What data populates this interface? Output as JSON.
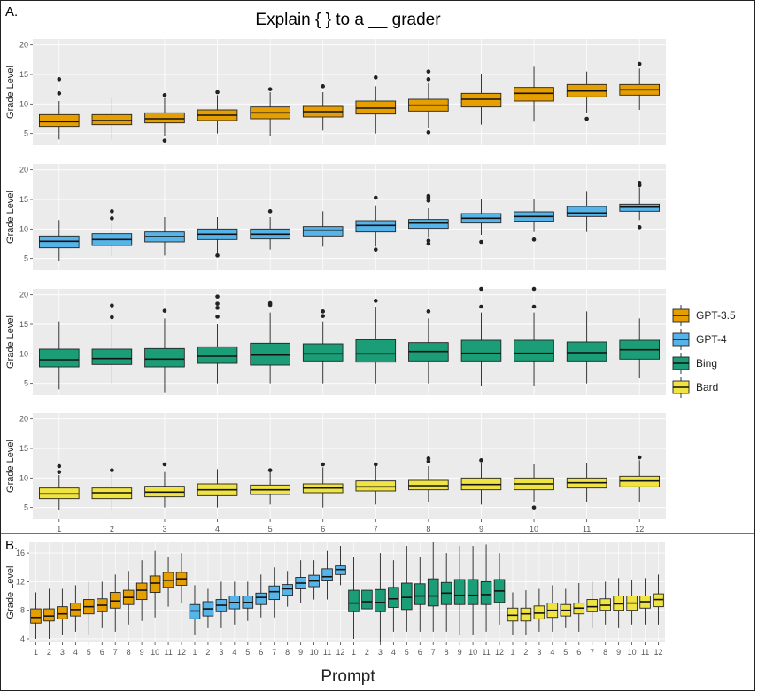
{
  "figure": {
    "panel_a_label": "A.",
    "panel_b_label": "B.",
    "title": "Explain { } to a __ grader",
    "x_title": "Prompt",
    "y_title": "Grade Level"
  },
  "legend": {
    "items": [
      {
        "name": "GPT-3.5",
        "color": "#E69F00"
      },
      {
        "name": "GPT-4",
        "color": "#56B4E9"
      },
      {
        "name": "Bing",
        "color": "#1B9E77"
      },
      {
        "name": "Bard",
        "color": "#F0E442"
      }
    ]
  },
  "chart_data": [
    {
      "type": "boxplot",
      "panel": "A",
      "model": "GPT-3.5",
      "color": "#E69F00",
      "categories": [
        "1",
        "2",
        "3",
        "4",
        "5",
        "6",
        "7",
        "8",
        "9",
        "10",
        "11",
        "12"
      ],
      "ylabel": "Grade Level",
      "ylim": [
        3,
        21
      ],
      "yticks": [
        5,
        10,
        15,
        20
      ],
      "boxes": [
        {
          "lo": 4,
          "q1": 6.2,
          "med": 7,
          "q3": 8.2,
          "hi": 10.5,
          "out": [
            11.8,
            14.2
          ]
        },
        {
          "lo": 4,
          "q1": 6.5,
          "med": 7.2,
          "q3": 8.2,
          "hi": 11
        },
        {
          "lo": 4.5,
          "q1": 6.8,
          "med": 7.5,
          "q3": 8.5,
          "hi": 11,
          "out": [
            3.8,
            11.5
          ]
        },
        {
          "lo": 5,
          "q1": 7.2,
          "med": 8.1,
          "q3": 9,
          "hi": 11.5,
          "out": [
            12
          ]
        },
        {
          "lo": 4.5,
          "q1": 7.5,
          "med": 8.5,
          "q3": 9.5,
          "hi": 12,
          "out": [
            12.5
          ]
        },
        {
          "lo": 5.5,
          "q1": 7.8,
          "med": 8.7,
          "q3": 9.6,
          "hi": 12,
          "out": [
            13
          ]
        },
        {
          "lo": 5,
          "q1": 8.3,
          "med": 9.3,
          "q3": 10.5,
          "hi": 13,
          "out": [
            14.5
          ]
        },
        {
          "lo": 6,
          "q1": 8.8,
          "med": 9.8,
          "q3": 10.8,
          "hi": 13.5,
          "out": [
            5.2,
            14.2,
            15.5
          ]
        },
        {
          "lo": 6.5,
          "q1": 9.5,
          "med": 10.8,
          "q3": 11.8,
          "hi": 15
        },
        {
          "lo": 7,
          "q1": 10.5,
          "med": 11.8,
          "q3": 12.8,
          "hi": 16.3
        },
        {
          "lo": 8.5,
          "q1": 11.2,
          "med": 12.2,
          "q3": 13.3,
          "hi": 15.5,
          "out": [
            7.5
          ]
        },
        {
          "lo": 9,
          "q1": 11.5,
          "med": 12.4,
          "q3": 13.3,
          "hi": 16,
          "out": [
            16.8
          ]
        }
      ]
    },
    {
      "type": "boxplot",
      "panel": "A",
      "model": "GPT-4",
      "color": "#56B4E9",
      "categories": [
        "1",
        "2",
        "3",
        "4",
        "5",
        "6",
        "7",
        "8",
        "9",
        "10",
        "11",
        "12"
      ],
      "ylabel": "Grade Level",
      "ylim": [
        3,
        21
      ],
      "yticks": [
        5,
        10,
        15,
        20
      ],
      "boxes": [
        {
          "lo": 4.5,
          "q1": 6.8,
          "med": 7.9,
          "q3": 8.8,
          "hi": 11.5
        },
        {
          "lo": 5.5,
          "q1": 7.2,
          "med": 8.2,
          "q3": 9.2,
          "hi": 11,
          "out": [
            11.8,
            13
          ]
        },
        {
          "lo": 5.5,
          "q1": 7.8,
          "med": 8.7,
          "q3": 9.5,
          "hi": 12
        },
        {
          "lo": 6,
          "q1": 8.2,
          "med": 9.1,
          "q3": 10,
          "hi": 12,
          "out": [
            5.5
          ]
        },
        {
          "lo": 6.5,
          "q1": 8.3,
          "med": 9.1,
          "q3": 10,
          "hi": 12,
          "out": [
            13
          ]
        },
        {
          "lo": 7,
          "q1": 8.8,
          "med": 9.8,
          "q3": 10.4,
          "hi": 13
        },
        {
          "lo": 7,
          "q1": 9.5,
          "med": 10.6,
          "q3": 11.4,
          "hi": 14,
          "out": [
            6.5,
            15.3
          ]
        },
        {
          "lo": 8.5,
          "q1": 10.1,
          "med": 11,
          "q3": 11.6,
          "hi": 13.5,
          "out": [
            7.5,
            8,
            14.8,
            15.3,
            15.6
          ]
        },
        {
          "lo": 9,
          "q1": 11,
          "med": 11.8,
          "q3": 12.6,
          "hi": 15,
          "out": [
            7.8
          ]
        },
        {
          "lo": 9.5,
          "q1": 11.3,
          "med": 12.1,
          "q3": 12.9,
          "hi": 15,
          "out": [
            8.2
          ]
        },
        {
          "lo": 9.5,
          "q1": 12.1,
          "med": 12.7,
          "q3": 13.8,
          "hi": 16.3
        },
        {
          "lo": 11.5,
          "q1": 13,
          "med": 13.7,
          "q3": 14.2,
          "hi": 17,
          "out": [
            10.3,
            17.4,
            17.8
          ]
        }
      ]
    },
    {
      "type": "boxplot",
      "panel": "A",
      "model": "Bing",
      "color": "#1B9E77",
      "categories": [
        "1",
        "2",
        "3",
        "4",
        "5",
        "6",
        "7",
        "8",
        "9",
        "10",
        "11",
        "12"
      ],
      "ylabel": "Grade Level",
      "ylim": [
        3,
        21
      ],
      "yticks": [
        5,
        10,
        15,
        20
      ],
      "boxes": [
        {
          "lo": 4,
          "q1": 7.8,
          "med": 9,
          "q3": 10.8,
          "hi": 15.5
        },
        {
          "lo": 5,
          "q1": 8.2,
          "med": 9.2,
          "q3": 10.8,
          "hi": 15,
          "out": [
            16.2,
            18.2
          ]
        },
        {
          "lo": 3.5,
          "q1": 7.8,
          "med": 9.1,
          "q3": 10.9,
          "hi": 16,
          "out": [
            17.3
          ]
        },
        {
          "lo": 5,
          "q1": 8.4,
          "med": 9.6,
          "q3": 11.2,
          "hi": 15,
          "out": [
            16.3,
            17.8,
            18.5,
            19.7
          ]
        },
        {
          "lo": 5,
          "q1": 8.1,
          "med": 9.8,
          "q3": 11.8,
          "hi": 17,
          "out": [
            18.3,
            18.6
          ]
        },
        {
          "lo": 5,
          "q1": 8.8,
          "med": 10,
          "q3": 11.7,
          "hi": 15.5,
          "out": [
            16.4,
            17.2
          ]
        },
        {
          "lo": 5,
          "q1": 8.6,
          "med": 10,
          "q3": 12.4,
          "hi": 18,
          "out": [
            19
          ]
        },
        {
          "lo": 5,
          "q1": 8.8,
          "med": 10.4,
          "q3": 11.9,
          "hi": 16,
          "out": [
            17.2
          ]
        },
        {
          "lo": 4.5,
          "q1": 8.8,
          "med": 10.1,
          "q3": 12.3,
          "hi": 17,
          "out": [
            18,
            21
          ]
        },
        {
          "lo": 4.5,
          "q1": 8.8,
          "med": 10.1,
          "q3": 12.3,
          "hi": 17,
          "out": [
            18,
            21
          ]
        },
        {
          "lo": 5,
          "q1": 8.8,
          "med": 10.2,
          "q3": 12,
          "hi": 17.2
        },
        {
          "lo": 6,
          "q1": 9.1,
          "med": 10.7,
          "q3": 12.3,
          "hi": 16
        }
      ]
    },
    {
      "type": "boxplot",
      "panel": "A",
      "model": "Bard",
      "color": "#F0E442",
      "categories": [
        "1",
        "2",
        "3",
        "4",
        "5",
        "6",
        "7",
        "8",
        "9",
        "10",
        "11",
        "12"
      ],
      "ylabel": "Grade Level",
      "ylim": [
        3,
        21
      ],
      "yticks": [
        5,
        10,
        15,
        20
      ],
      "boxes": [
        {
          "lo": 4.5,
          "q1": 6.5,
          "med": 7.3,
          "q3": 8.3,
          "hi": 10.5,
          "out": [
            11,
            12
          ]
        },
        {
          "lo": 4.5,
          "q1": 6.5,
          "med": 7.5,
          "q3": 8.3,
          "hi": 10.8,
          "out": [
            11.3
          ]
        },
        {
          "lo": 5,
          "q1": 6.8,
          "med": 7.6,
          "q3": 8.6,
          "hi": 11,
          "out": [
            12.3
          ]
        },
        {
          "lo": 5,
          "q1": 7,
          "med": 8,
          "q3": 9,
          "hi": 11.5
        },
        {
          "lo": 5.5,
          "q1": 7.2,
          "med": 8,
          "q3": 8.8,
          "hi": 11,
          "out": [
            11.3
          ]
        },
        {
          "lo": 5,
          "q1": 7.5,
          "med": 8.3,
          "q3": 9,
          "hi": 11.8,
          "out": [
            12.3
          ]
        },
        {
          "lo": 5.5,
          "q1": 7.8,
          "med": 8.5,
          "q3": 9.5,
          "hi": 12,
          "out": [
            12.3
          ]
        },
        {
          "lo": 6,
          "q1": 8,
          "med": 8.7,
          "q3": 9.6,
          "hi": 12,
          "out": [
            12.8,
            13.3
          ]
        },
        {
          "lo": 5.5,
          "q1": 8,
          "med": 8.9,
          "q3": 10,
          "hi": 12.5,
          "out": [
            13
          ]
        },
        {
          "lo": 6,
          "q1": 8,
          "med": 9,
          "q3": 10,
          "hi": 12.3,
          "out": [
            5
          ]
        },
        {
          "lo": 6,
          "q1": 8.3,
          "med": 9.2,
          "q3": 10,
          "hi": 12.5
        },
        {
          "lo": 6,
          "q1": 8.5,
          "med": 9.5,
          "q3": 10.3,
          "hi": 13,
          "out": [
            13.5
          ]
        }
      ]
    },
    {
      "type": "boxplot",
      "panel": "B",
      "description": "Combined view: GPT-3.5, GPT-4, Bing and Bard boxes (prompts 1-12 each) side by side on a shared axis",
      "series_order": [
        "GPT-3.5",
        "GPT-4",
        "Bing",
        "Bard"
      ],
      "categories": [
        "1",
        "2",
        "3",
        "4",
        "5",
        "6",
        "7",
        "8",
        "9",
        "10",
        "11",
        "12"
      ],
      "ylabel": "Grade Level",
      "ylim": [
        3.5,
        17.5
      ],
      "yticks": [
        4,
        8,
        12,
        16
      ],
      "reuses_panel_a_values": true
    }
  ]
}
